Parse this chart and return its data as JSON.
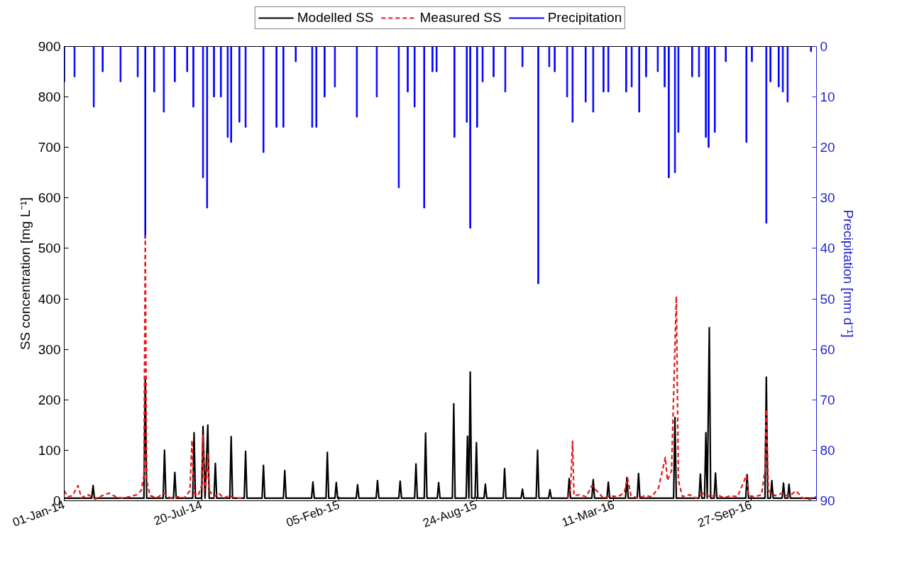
{
  "chart_data": {
    "type": "line",
    "ylabel": "SS concentration [mg L⁻¹]",
    "y2label": "Precipitation [mm d⁻¹]",
    "legend": "top",
    "grid": false,
    "xlim": [
      "2014-01-01",
      "2016-12-31"
    ],
    "xticks": [
      {
        "value": "2014-01-01",
        "label": "01-Jan-14"
      },
      {
        "value": "2014-07-20",
        "label": "20-Jul-14"
      },
      {
        "value": "2015-02-05",
        "label": "05-Feb-15"
      },
      {
        "value": "2015-08-24",
        "label": "24-Aug-15"
      },
      {
        "value": "2016-03-11",
        "label": "11-Mar-16"
      },
      {
        "value": "2016-09-27",
        "label": "27-Sep-16"
      }
    ],
    "ylim": [
      0,
      900
    ],
    "yticks": [
      0,
      100,
      200,
      300,
      400,
      500,
      600,
      700,
      800,
      900
    ],
    "y2lim": [
      90,
      0
    ],
    "y2ticks": [
      0,
      10,
      20,
      30,
      40,
      50,
      60,
      70,
      80,
      90
    ],
    "series": [
      {
        "name": "Modelled SS",
        "color": "#000000",
        "line_style": "solid",
        "x": [
          "2014-01-01",
          "2014-02-10",
          "2014-02-12",
          "2014-02-14",
          "2014-04-27",
          "2014-04-29",
          "2014-05-01",
          "2014-05-25",
          "2014-05-27",
          "2014-05-29",
          "2014-06-09",
          "2014-06-11",
          "2014-06-13",
          "2014-07-07",
          "2014-07-09",
          "2014-07-11",
          "2014-07-20",
          "2014-07-22",
          "2014-07-25",
          "2014-07-29",
          "2014-07-31",
          "2014-08-07",
          "2014-08-09",
          "2014-08-11",
          "2014-08-30",
          "2014-09-01",
          "2014-09-03",
          "2014-09-20",
          "2014-09-22",
          "2014-09-24",
          "2014-10-16",
          "2014-10-18",
          "2014-10-20",
          "2014-11-16",
          "2014-11-18",
          "2014-11-20",
          "2014-12-27",
          "2014-12-29",
          "2014-12-31",
          "2015-01-17",
          "2015-01-19",
          "2015-01-21",
          "2015-01-30",
          "2015-02-01",
          "2015-02-03",
          "2015-03-02",
          "2015-03-04",
          "2015-03-06",
          "2015-03-31",
          "2015-04-02",
          "2015-04-04",
          "2015-05-03",
          "2015-05-05",
          "2015-05-07",
          "2015-05-26",
          "2015-05-28",
          "2015-05-30",
          "2015-06-09",
          "2015-06-11",
          "2015-06-13",
          "2015-06-28",
          "2015-06-30",
          "2015-07-02",
          "2015-07-20",
          "2015-07-22",
          "2015-07-24",
          "2015-08-09",
          "2015-08-11",
          "2015-08-13",
          "2015-08-15",
          "2015-08-17",
          "2015-08-22",
          "2015-08-24",
          "2015-08-26",
          "2015-09-04",
          "2015-09-06",
          "2015-09-08",
          "2015-10-02",
          "2015-10-04",
          "2015-10-06",
          "2015-10-28",
          "2015-10-30",
          "2015-11-01",
          "2015-11-19",
          "2015-11-21",
          "2015-11-23",
          "2015-12-07",
          "2015-12-09",
          "2015-12-11",
          "2016-01-04",
          "2016-01-06",
          "2016-01-08",
          "2016-02-08",
          "2016-02-10",
          "2016-02-12",
          "2016-03-01",
          "2016-03-03",
          "2016-03-05",
          "2016-03-28",
          "2016-03-30",
          "2016-04-01",
          "2016-04-14",
          "2016-04-16",
          "2016-04-18",
          "2016-06-06",
          "2016-06-08",
          "2016-06-10",
          "2016-07-13",
          "2016-07-15",
          "2016-07-17",
          "2016-07-21",
          "2016-07-23",
          "2016-07-25",
          "2016-07-28",
          "2016-07-30",
          "2016-08-04",
          "2016-08-06",
          "2016-08-08",
          "2016-09-19",
          "2016-09-21",
          "2016-09-23",
          "2016-10-17",
          "2016-10-19",
          "2016-10-21",
          "2016-10-25",
          "2016-10-27",
          "2016-10-29",
          "2016-11-11",
          "2016-11-13",
          "2016-11-15",
          "2016-11-19",
          "2016-11-21",
          "2016-11-23",
          "2016-12-31"
        ],
        "values": [
          5,
          5,
          30,
          5,
          5,
          245,
          5,
          5,
          100,
          5,
          5,
          56,
          5,
          5,
          135,
          5,
          5,
          147,
          5,
          150,
          5,
          5,
          74,
          5,
          5,
          127,
          5,
          5,
          98,
          5,
          5,
          70,
          5,
          5,
          60,
          5,
          5,
          37,
          5,
          5,
          96,
          5,
          5,
          36,
          5,
          5,
          32,
          5,
          5,
          40,
          5,
          5,
          39,
          5,
          5,
          73,
          5,
          5,
          134,
          5,
          5,
          36,
          5,
          5,
          192,
          5,
          5,
          128,
          5,
          255,
          5,
          5,
          115,
          5,
          5,
          33,
          5,
          5,
          64,
          5,
          5,
          23,
          5,
          5,
          100,
          5,
          5,
          22,
          5,
          5,
          44,
          5,
          5,
          42,
          5,
          5,
          37,
          5,
          5,
          46,
          5,
          5,
          54,
          5,
          5,
          165,
          5,
          5,
          53,
          5,
          5,
          135,
          5,
          343,
          5,
          5,
          55,
          5,
          5,
          52,
          5,
          5,
          245,
          5,
          5,
          40,
          5,
          5,
          35,
          5,
          5,
          33,
          5,
          5
        ]
      },
      {
        "name": "Measured SS",
        "color": "#e41a1c",
        "line_style": "dashed",
        "x": [
          "2014-01-01",
          "2014-01-06",
          "2014-01-13",
          "2014-01-21",
          "2014-01-26",
          "2014-02-05",
          "2014-02-15",
          "2014-02-25",
          "2014-03-07",
          "2014-03-17",
          "2014-03-27",
          "2014-04-06",
          "2014-04-16",
          "2014-04-23",
          "2014-04-27",
          "2014-04-29",
          "2014-05-01",
          "2014-05-06",
          "2014-05-16",
          "2014-05-26",
          "2014-06-05",
          "2014-06-15",
          "2014-06-25",
          "2014-07-03",
          "2014-07-06",
          "2014-07-09",
          "2014-07-15",
          "2014-07-20",
          "2014-07-22",
          "2014-07-24",
          "2014-07-27",
          "2014-07-29",
          "2014-07-31",
          "2014-08-07",
          "2014-08-14",
          "2014-08-21",
          "2014-08-29",
          "2014-09-08",
          "2014-09-20",
          "2014-10-28",
          "2016-01-04",
          "2016-01-08",
          "2016-01-11",
          "2016-01-13",
          "2016-01-21",
          "2016-01-31",
          "2016-02-08",
          "2016-02-15",
          "2016-02-25",
          "2016-03-06",
          "2016-03-16",
          "2016-03-26",
          "2016-03-31",
          "2016-04-05",
          "2016-04-15",
          "2016-04-25",
          "2016-05-05",
          "2016-05-15",
          "2016-05-25",
          "2016-05-28",
          "2016-06-03",
          "2016-06-10",
          "2016-06-13",
          "2016-06-19",
          "2016-06-29",
          "2016-07-09",
          "2016-07-19",
          "2016-07-29",
          "2016-08-08",
          "2016-08-18",
          "2016-08-28",
          "2016-09-07",
          "2016-09-20",
          "2016-09-23",
          "2016-10-02",
          "2016-10-12",
          "2016-10-17",
          "2016-10-19",
          "2016-10-22",
          "2016-11-01",
          "2016-11-11",
          "2016-11-21",
          "2016-12-01",
          "2016-12-11",
          "2016-12-21",
          "2016-12-31"
        ],
        "values": [
          20,
          8,
          10,
          30,
          6,
          12,
          3,
          10,
          15,
          8,
          5,
          8,
          12,
          20,
          50,
          525,
          40,
          10,
          6,
          15,
          5,
          8,
          6,
          20,
          120,
          15,
          10,
          30,
          130,
          20,
          40,
          95,
          20,
          8,
          15,
          5,
          10,
          5,
          5,
          null,
          5,
          25,
          118,
          10,
          12,
          8,
          30,
          20,
          5,
          10,
          8,
          15,
          45,
          10,
          5,
          10,
          8,
          25,
          86,
          40,
          60,
          405,
          40,
          8,
          12,
          5,
          15,
          8,
          12,
          6,
          10,
          8,
          50,
          10,
          8,
          12,
          60,
          181,
          20,
          10,
          15,
          8,
          20,
          5,
          3,
          8
        ]
      },
      {
        "name": "Precipitation",
        "type": "bar",
        "axis": "y2",
        "color": "#0000ff",
        "x": [
          "2014-01-01",
          "2014-01-16",
          "2014-02-13",
          "2014-02-26",
          "2014-03-24",
          "2014-04-18",
          "2014-04-29",
          "2014-05-12",
          "2014-05-26",
          "2014-06-11",
          "2014-06-29",
          "2014-07-08",
          "2014-07-22",
          "2014-07-28",
          "2014-08-07",
          "2014-08-17",
          "2014-08-27",
          "2014-09-01",
          "2014-09-13",
          "2014-09-22",
          "2014-10-18",
          "2014-11-06",
          "2014-11-16",
          "2014-12-04",
          "2014-12-28",
          "2015-01-03",
          "2015-01-15",
          "2015-01-30",
          "2015-03-03",
          "2015-04-01",
          "2015-05-03",
          "2015-05-16",
          "2015-05-26",
          "2015-06-09",
          "2015-06-21",
          "2015-06-27",
          "2015-07-23",
          "2015-08-10",
          "2015-08-15",
          "2015-08-25",
          "2015-09-02",
          "2015-09-18",
          "2015-10-05",
          "2015-10-30",
          "2015-11-22",
          "2015-12-08",
          "2015-12-16",
          "2016-01-03",
          "2016-01-11",
          "2016-01-30",
          "2016-02-10",
          "2016-02-25",
          "2016-03-03",
          "2016-03-29",
          "2016-04-06",
          "2016-04-17",
          "2016-04-27",
          "2016-05-14",
          "2016-05-24",
          "2016-05-30",
          "2016-06-08",
          "2016-06-13",
          "2016-07-03",
          "2016-07-13",
          "2016-07-23",
          "2016-07-27",
          "2016-08-05",
          "2016-08-21",
          "2016-09-20",
          "2016-09-28",
          "2016-10-19",
          "2016-10-25",
          "2016-11-06",
          "2016-11-12",
          "2016-11-19",
          "2016-12-23"
        ],
        "values": [
          7,
          6,
          12,
          5,
          7,
          6,
          38,
          9,
          13,
          7,
          5,
          12,
          26,
          32,
          10,
          10,
          18,
          19,
          15,
          16,
          21,
          16,
          16,
          3,
          16,
          16,
          10,
          8,
          14,
          10,
          28,
          9,
          12,
          32,
          5,
          5,
          18,
          15,
          36,
          16,
          7,
          6,
          9,
          4,
          47,
          4,
          5,
          10,
          15,
          11,
          13,
          9,
          9,
          9,
          8,
          13,
          6,
          5,
          8,
          26,
          25,
          17,
          6,
          6,
          18,
          20,
          17,
          3,
          19,
          3,
          35,
          7,
          8,
          9,
          11,
          1
        ]
      }
    ]
  }
}
